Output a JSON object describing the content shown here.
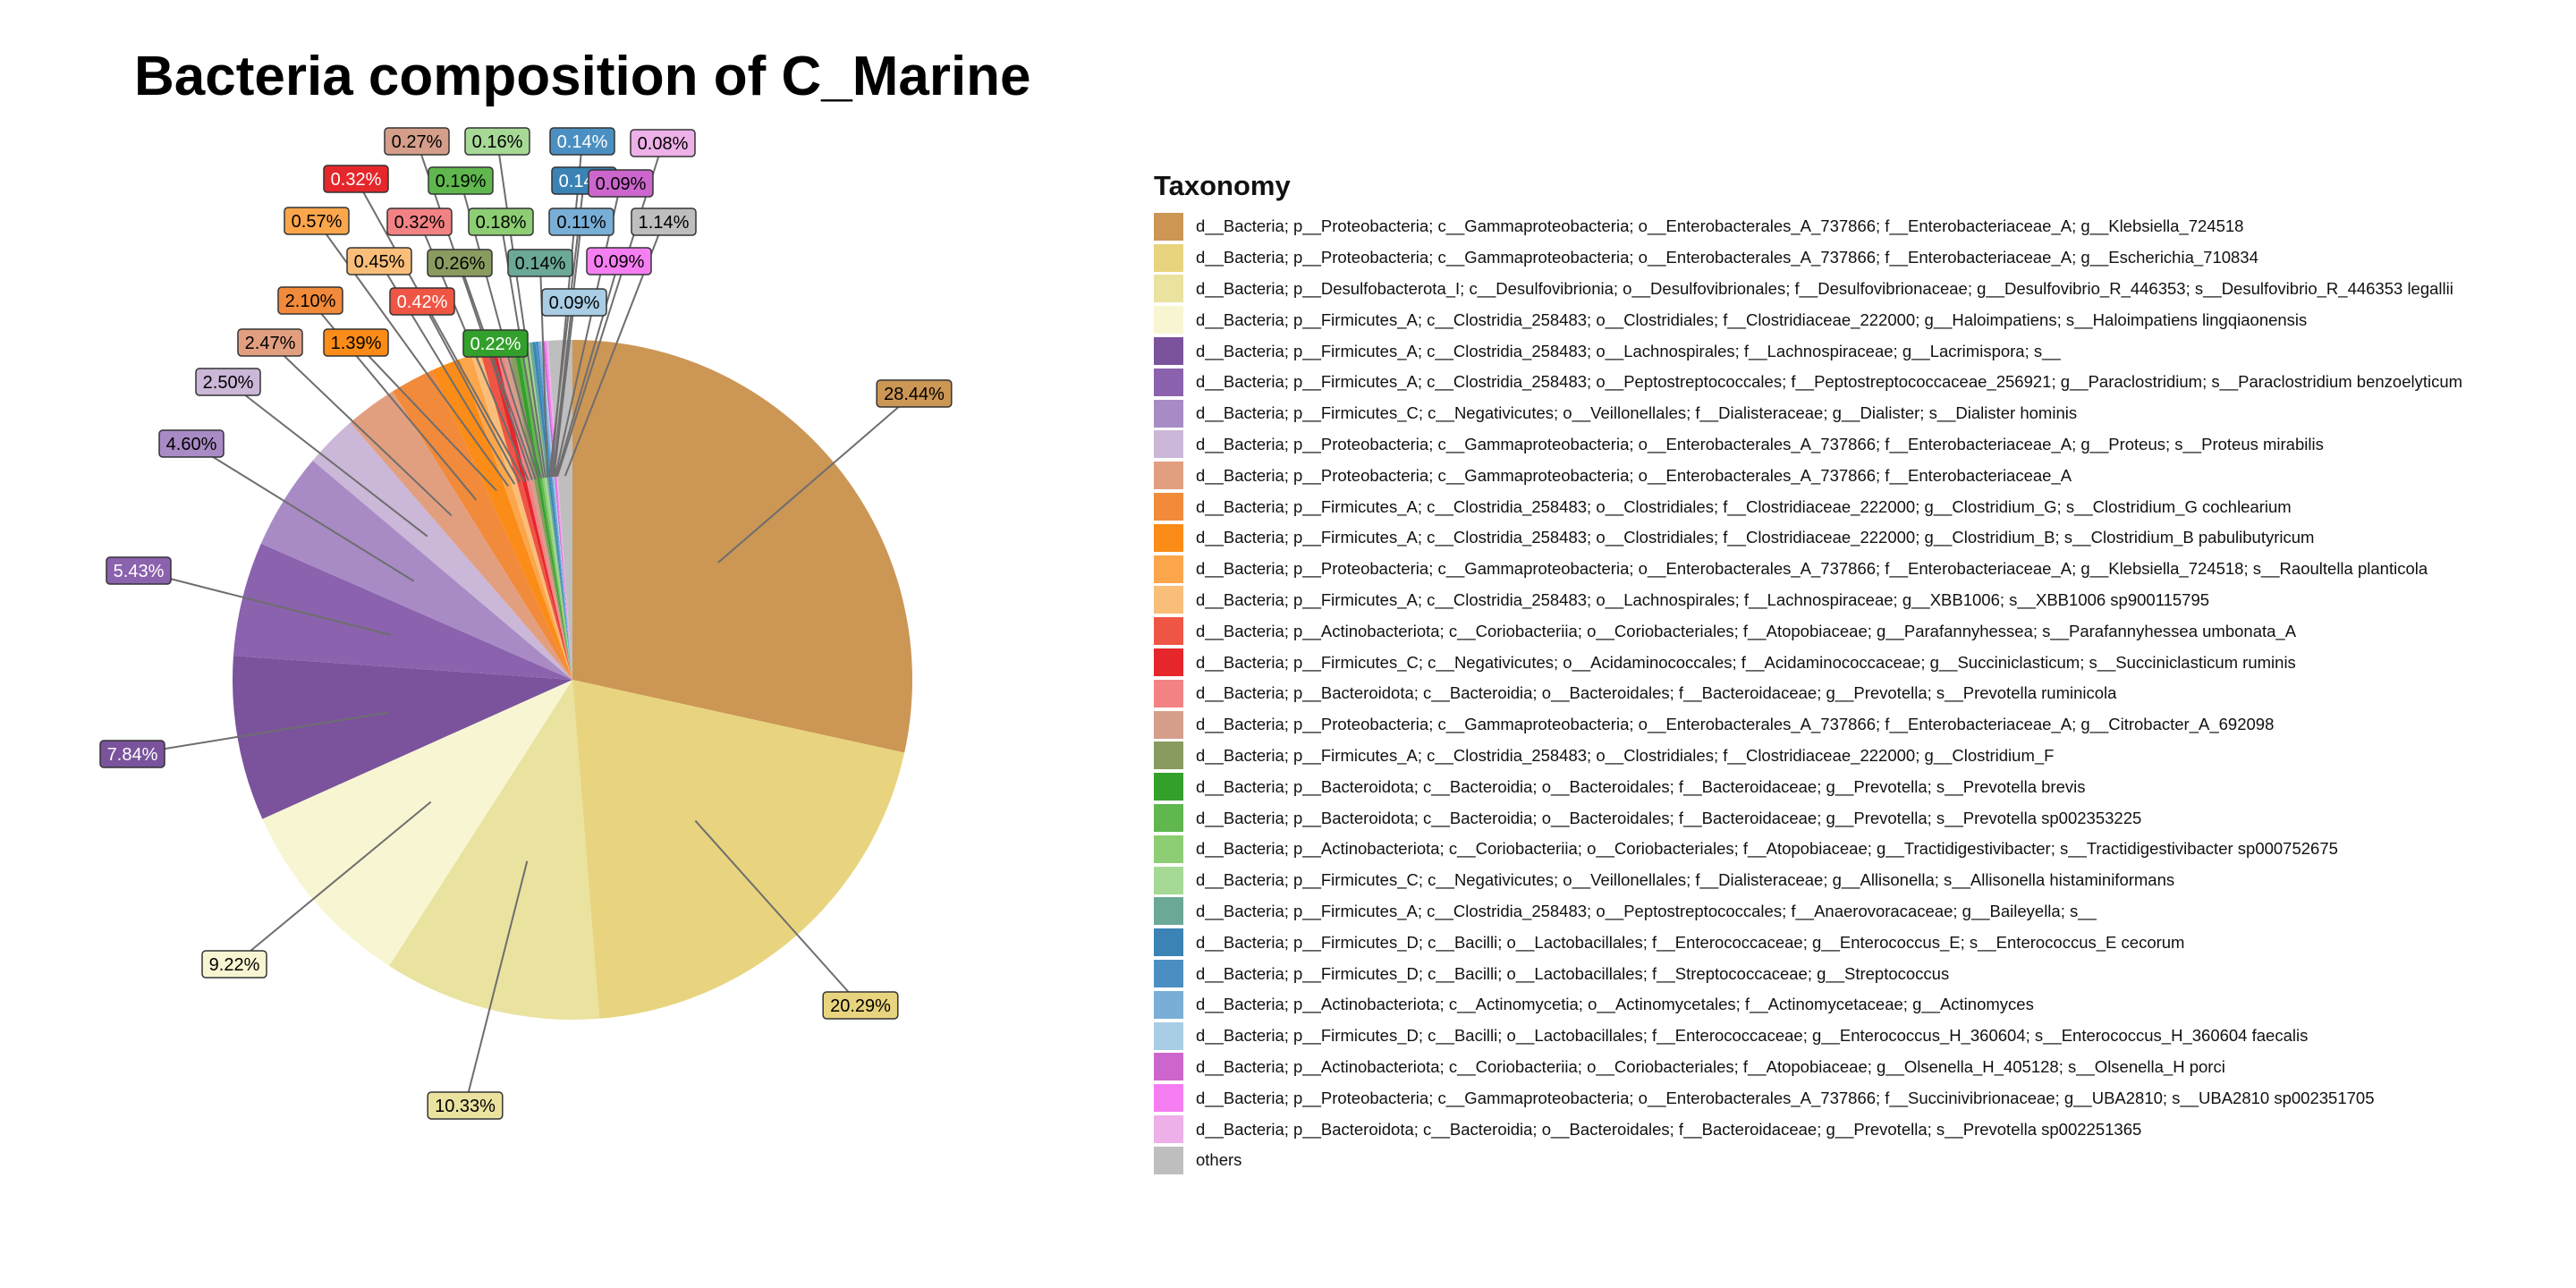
{
  "chart_data": {
    "type": "pie",
    "title": "Bacteria composition of C_Marine",
    "legend_title": "Taxonomy",
    "legend_position": "right",
    "slices": [
      {
        "label": "d__Bacteria; p__Proteobacteria; c__Gammaproteobacteria; o__Enterobacterales_A_737866; f__Enterobacteriaceae_A; g__Klebsiella_724518",
        "value": 28.44,
        "display": "28.44%",
        "color": "#CC9655"
      },
      {
        "label": "d__Bacteria; p__Proteobacteria; c__Gammaproteobacteria; o__Enterobacterales_A_737866; f__Enterobacteriaceae_A; g__Escherichia_710834",
        "value": 20.29,
        "display": "20.29%",
        "color": "#E8D47E"
      },
      {
        "label": "d__Bacteria; p__Desulfobacterota_I; c__Desulfovibrionia; o__Desulfovibrionales; f__Desulfovibrionaceae; g__Desulfovibrio_R_446353; s__Desulfovibrio_R_446353 legallii",
        "value": 10.33,
        "display": "10.33%",
        "color": "#EAE29F"
      },
      {
        "label": "d__Bacteria; p__Firmicutes_A; c__Clostridia_258483; o__Clostridiales; f__Clostridiaceae_222000; g__Haloimpatiens; s__Haloimpatiens lingqiaonensis",
        "value": 9.22,
        "display": "9.22%",
        "color": "#F8F6D2"
      },
      {
        "label": "d__Bacteria; p__Firmicutes_A; c__Clostridia_258483; o__Lachnospirales; f__Lachnospiraceae; g__Lacrimispora; s__",
        "value": 7.84,
        "display": "7.84%",
        "color": "#7A539C"
      },
      {
        "label": "d__Bacteria; p__Firmicutes_A; c__Clostridia_258483; o__Peptostreptococcales; f__Peptostreptococcaceae_256921; g__Paraclostridium; s__Paraclostridium benzoelyticum",
        "value": 5.43,
        "display": "5.43%",
        "color": "#8B62AE"
      },
      {
        "label": "d__Bacteria; p__Firmicutes_C; c__Negativicutes; o__Veillonellales; f__Dialisteraceae; g__Dialister; s__Dialister hominis",
        "value": 4.6,
        "display": "4.60%",
        "color": "#A88BC5"
      },
      {
        "label": "d__Bacteria; p__Proteobacteria; c__Gammaproteobacteria; o__Enterobacterales_A_737866; f__Enterobacteriaceae_A; g__Proteus; s__Proteus mirabilis",
        "value": 2.5,
        "display": "2.50%",
        "color": "#CBB7D8"
      },
      {
        "label": "d__Bacteria; p__Proteobacteria; c__Gammaproteobacteria; o__Enterobacterales_A_737866; f__Enterobacteriaceae_A",
        "value": 2.47,
        "display": "2.47%",
        "color": "#E29F80"
      },
      {
        "label": "d__Bacteria; p__Firmicutes_A; c__Clostridia_258483; o__Clostridiales; f__Clostridiaceae_222000; g__Clostridium_G; s__Clostridium_G cochlearium",
        "value": 2.1,
        "display": "2.10%",
        "color": "#F18A3A"
      },
      {
        "label": "d__Bacteria; p__Firmicutes_A; c__Clostridia_258483; o__Clostridiales; f__Clostridiaceae_222000; g__Clostridium_B; s__Clostridium_B pabulibutyricum",
        "value": 1.39,
        "display": "1.39%",
        "color": "#FB8C17"
      },
      {
        "label": "d__Bacteria; p__Proteobacteria; c__Gammaproteobacteria; o__Enterobacterales_A_737866; f__Enterobacteriaceae_A; g__Klebsiella_724518; s__Raoultella planticola",
        "value": 0.57,
        "display": "0.57%",
        "color": "#FCA64C"
      },
      {
        "label": "d__Bacteria; p__Firmicutes_A; c__Clostridia_258483; o__Lachnospirales; f__Lachnospiraceae; g__XBB1006; s__XBB1006 sp900115795",
        "value": 0.45,
        "display": "0.45%",
        "color": "#F9BE7A"
      },
      {
        "label": "d__Bacteria; p__Actinobacteriota; c__Coriobacteriia; o__Coriobacteriales; f__Atopobiaceae; g__Parafannyhessea; s__Parafannyhessea umbonata_A",
        "value": 0.42,
        "display": "0.42%",
        "color": "#EE5544"
      },
      {
        "label": "d__Bacteria; p__Firmicutes_C; c__Negativicutes; o__Acidaminococcales; f__Acidaminococcaceae; g__Succiniclasticum; s__Succiniclasticum ruminis",
        "value": 0.32,
        "display": "0.32%",
        "color": "#E5262B"
      },
      {
        "label": "d__Bacteria; p__Bacteroidota; c__Bacteroidia; o__Bacteroidales; f__Bacteroidaceae; g__Prevotella; s__Prevotella ruminicola",
        "value": 0.32,
        "display": "0.32%",
        "color": "#F28284"
      },
      {
        "label": "d__Bacteria; p__Proteobacteria; c__Gammaproteobacteria; o__Enterobacterales_A_737866; f__Enterobacteriaceae_A; g__Citrobacter_A_692098",
        "value": 0.27,
        "display": "0.27%",
        "color": "#D49E8A"
      },
      {
        "label": "d__Bacteria; p__Firmicutes_A; c__Clostridia_258483; o__Clostridiales; f__Clostridiaceae_222000; g__Clostridium_F",
        "value": 0.26,
        "display": "0.26%",
        "color": "#899B5F"
      },
      {
        "label": "d__Bacteria; p__Bacteroidota; c__Bacteroidia; o__Bacteroidales; f__Bacteroidaceae; g__Prevotella; s__Prevotella brevis",
        "value": 0.22,
        "display": "0.22%",
        "color": "#33A02C"
      },
      {
        "label": "d__Bacteria; p__Bacteroidota; c__Bacteroidia; o__Bacteroidales; f__Bacteroidaceae; g__Prevotella; s__Prevotella sp002353225",
        "value": 0.19,
        "display": "0.19%",
        "color": "#5FB74E"
      },
      {
        "label": "d__Bacteria; p__Actinobacteriota; c__Coriobacteriia; o__Coriobacteriales; f__Atopobiaceae; g__Tractidigestivibacter; s__Tractidigestivibacter sp000752675",
        "value": 0.18,
        "display": "0.18%",
        "color": "#8DCD73"
      },
      {
        "label": "d__Bacteria; p__Firmicutes_C; c__Negativicutes; o__Veillonellales; f__Dialisteraceae; g__Allisonella; s__Allisonella histaminiformans",
        "value": 0.16,
        "display": "0.16%",
        "color": "#A6D996"
      },
      {
        "label": "d__Bacteria; p__Firmicutes_A; c__Clostridia_258483; o__Peptostreptococcales; f__Anaerovoracaceae; g__Baileyella; s__",
        "value": 0.14,
        "display": "0.14%",
        "color": "#6BA898"
      },
      {
        "label": "d__Bacteria; p__Firmicutes_D; c__Bacilli; o__Lactobacillales; f__Enterococcaceae; g__Enterococcus_E; s__Enterococcus_E cecorum",
        "value": 0.14,
        "display": "0.14%",
        "color": "#3A83B4"
      },
      {
        "label": "d__Bacteria; p__Firmicutes_D; c__Bacilli; o__Lactobacillales; f__Streptococcaceae; g__Streptococcus",
        "value": 0.14,
        "display": "0.14%",
        "color": "#4B8FC2"
      },
      {
        "label": "d__Bacteria; p__Actinobacteriota; c__Actinomycetia; o__Actinomycetales; f__Actinomycetaceae; g__Actinomyces",
        "value": 0.11,
        "display": "0.11%",
        "color": "#79AED6"
      },
      {
        "label": "d__Bacteria; p__Firmicutes_D; c__Bacilli; o__Lactobacillales; f__Enterococcaceae; g__Enterococcus_H_360604; s__Enterococcus_H_360604 faecalis",
        "value": 0.09,
        "display": "0.09%",
        "color": "#A9CDE5"
      },
      {
        "label": "d__Bacteria; p__Actinobacteriota; c__Coriobacteriia; o__Coriobacteriales; f__Atopobiaceae; g__Olsenella_H_405128; s__Olsenella_H porci",
        "value": 0.09,
        "display": "0.09%",
        "color": "#CC66CC"
      },
      {
        "label": "d__Bacteria; p__Proteobacteria; c__Gammaproteobacteria; o__Enterobacterales_A_737866; f__Succinivibrionaceae; g__UBA2810; s__UBA2810 sp002351705",
        "value": 0.09,
        "display": "0.09%",
        "color": "#F67EF3"
      },
      {
        "label": "d__Bacteria; p__Bacteroidota; c__Bacteroidia; o__Bacteroidales; f__Bacteroidaceae; g__Prevotella; s__Prevotella sp002251365",
        "value": 0.08,
        "display": "0.08%",
        "color": "#EDB0E8"
      },
      {
        "label": "others",
        "value": 1.14,
        "display": "1.14%",
        "color": "#BEBEBE"
      }
    ]
  }
}
